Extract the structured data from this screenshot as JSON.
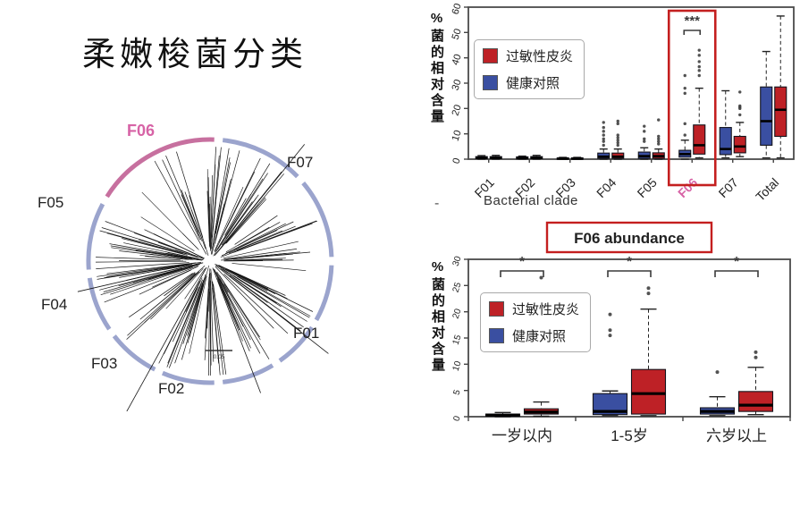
{
  "page_title": "柔嫩梭菌分类",
  "artifact_dash": "-",
  "colors": {
    "case_red": "#be2126",
    "control_blue": "#3a4fa1",
    "highlight_red": "#c41f1f",
    "arc_blue": "#9ba4cd",
    "arc_pink": "#c7709f",
    "pink_label": "#d763a6"
  },
  "tree": {
    "labels": {
      "f01": "F01",
      "f02": "F02",
      "f03": "F03",
      "f04": "F04",
      "f05": "F05",
      "f06": "F06",
      "f07": "F07"
    },
    "scale_bar": "0.05"
  },
  "chart_data": [
    {
      "type": "box",
      "title": "",
      "xlabel": "Bacterial clade",
      "ylabel": "%菌的相对含量",
      "ylim": [
        0,
        60
      ],
      "yticks": [
        0,
        10,
        20,
        30,
        40,
        50,
        60
      ],
      "categories": [
        "F01",
        "F02",
        "F03",
        "F04",
        "F05",
        "F06",
        "F07",
        "Total"
      ],
      "legend_position": "upper-left",
      "grid": false,
      "legend": [
        {
          "label": "过敏性皮炎",
          "color": "#be2126"
        },
        {
          "label": "健康对照",
          "color": "#3a4fa1"
        }
      ],
      "series": [
        {
          "name": "健康对照",
          "color": "#3a4fa1",
          "boxes": [
            [
              0,
              0.2,
              0.5,
              1,
              1.4,
              []
            ],
            [
              0,
              0.1,
              0.4,
              0.9,
              1.2,
              []
            ],
            [
              0,
              0,
              0.2,
              0.5,
              0.7,
              []
            ],
            [
              0,
              0.3,
              1,
              2.4,
              4,
              [
                5.5,
                7,
                8,
                9.5,
                11,
                12.5,
                14.5
              ]
            ],
            [
              0,
              0.3,
              1.2,
              2.8,
              4.5,
              [
                7,
                8,
                11,
                13
              ]
            ],
            [
              0,
              0.8,
              2,
              3.5,
              7.5,
              [
                9.5,
                14,
                26,
                28,
                33
              ]
            ],
            [
              0.5,
              1.8,
              4,
              12.5,
              27,
              []
            ],
            [
              0.5,
              5.5,
              15,
              28.5,
              42.5,
              []
            ]
          ]
        },
        {
          "name": "过敏性皮炎",
          "color": "#be2126",
          "boxes": [
            [
              0,
              0.2,
              0.5,
              1,
              1.5,
              []
            ],
            [
              0,
              0.2,
              0.5,
              1,
              1.5,
              []
            ],
            [
              0,
              0,
              0.2,
              0.5,
              0.7,
              []
            ],
            [
              0,
              0.3,
              1,
              2.4,
              4,
              [
                5.5,
                6.5,
                7.5,
                8.5,
                9.5,
                14,
                15
              ]
            ],
            [
              0,
              0.3,
              1.2,
              2.5,
              4,
              [
                6,
                7,
                8,
                9,
                15.5
              ]
            ],
            [
              0.5,
              2,
              5.5,
              13.5,
              28,
              [
                33,
                35,
                36.5,
                38.5,
                41,
                43
              ]
            ],
            [
              1,
              2.5,
              5,
              9,
              14.5,
              [
                17.5,
                20,
                20.5,
                21,
                26.5
              ]
            ],
            [
              0.5,
              9,
              19.5,
              28.5,
              56.5,
              []
            ]
          ]
        }
      ],
      "annotations": [
        {
          "category": "F06",
          "label": "***"
        }
      ],
      "highlight": {
        "category": "F06"
      }
    },
    {
      "type": "box",
      "title": "F06 abundance",
      "xlabel": "",
      "ylabel": "%菌的相对含量",
      "ylim": [
        0,
        30
      ],
      "yticks": [
        0,
        5,
        10,
        15,
        20,
        25,
        30
      ],
      "categories": [
        "一岁以内",
        "1-5岁",
        "六岁以上"
      ],
      "legend_position": "upper-left",
      "grid": false,
      "legend": [
        {
          "label": "过敏性皮炎",
          "color": "#be2126"
        },
        {
          "label": "健康对照",
          "color": "#3a4fa1"
        }
      ],
      "series": [
        {
          "name": "健康对照",
          "color": "#3a4fa1",
          "boxes": [
            [
              0,
              0.1,
              0.3,
              0.5,
              0.8,
              []
            ],
            [
              0.2,
              0.4,
              1,
              4.4,
              4.9,
              [
                15.5,
                16.5,
                19.5
              ]
            ],
            [
              0.2,
              0.5,
              1,
              1.7,
              3.8,
              [
                8.5
              ]
            ]
          ]
        },
        {
          "name": "过敏性皮炎",
          "color": "#be2126",
          "boxes": [
            [
              0.1,
              0.5,
              0.9,
              1.5,
              2.8,
              [
                26.5
              ]
            ],
            [
              0.2,
              0.5,
              4.4,
              9,
              20.5,
              [
                23.5,
                24.5
              ]
            ],
            [
              0.4,
              1,
              2.2,
              4.8,
              9.4,
              [
                11.3,
                12.3
              ]
            ]
          ]
        }
      ],
      "annotations": [
        {
          "category": "一岁以内",
          "label": "*"
        },
        {
          "category": "1-5岁",
          "label": "*"
        },
        {
          "category": "六岁以上",
          "label": "*"
        }
      ]
    }
  ]
}
